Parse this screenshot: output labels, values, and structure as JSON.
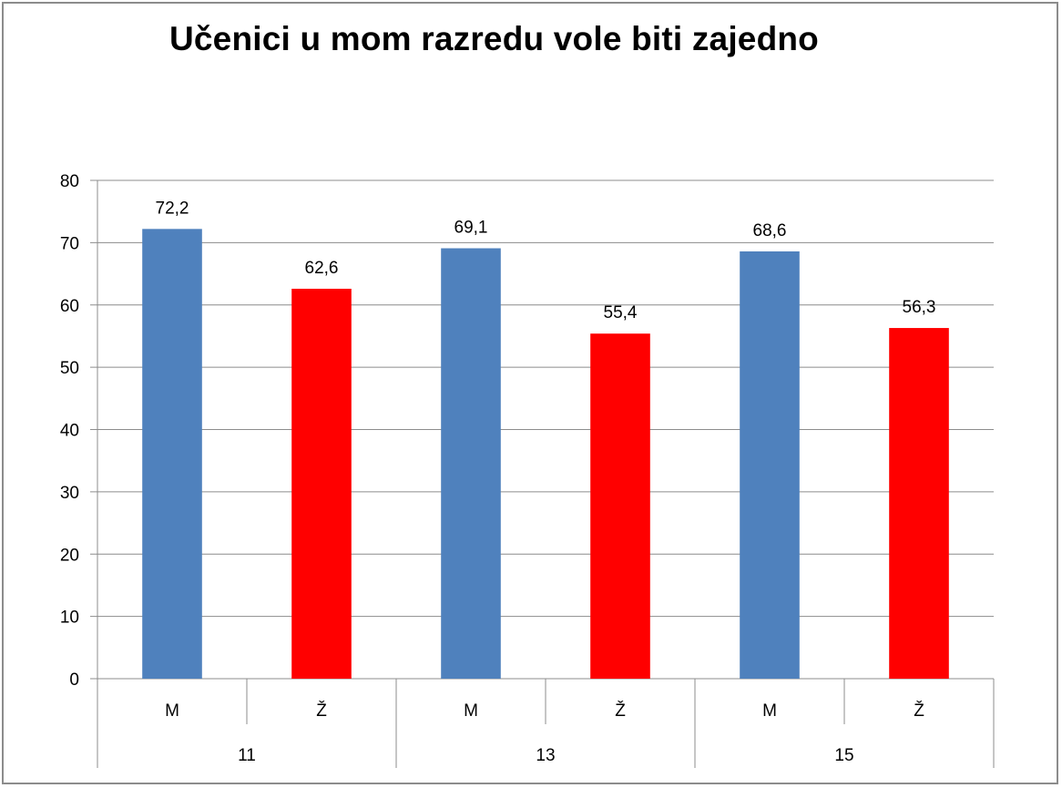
{
  "chart_data": {
    "type": "bar",
    "title": "Učenici u mom razredu vole biti zajedno",
    "groups": [
      {
        "label": "11",
        "bars": [
          {
            "category": "M",
            "value": 72.2,
            "display": "72,2",
            "color": "#4f81bd"
          },
          {
            "category": "Ž",
            "value": 62.6,
            "display": "62,6",
            "color": "#ff0000"
          }
        ]
      },
      {
        "label": "13",
        "bars": [
          {
            "category": "M",
            "value": 69.1,
            "display": "69,1",
            "color": "#4f81bd"
          },
          {
            "category": "Ž",
            "value": 55.4,
            "display": "55,4",
            "color": "#ff0000"
          }
        ]
      },
      {
        "label": "15",
        "bars": [
          {
            "category": "M",
            "value": 68.6,
            "display": "68,6",
            "color": "#4f81bd"
          },
          {
            "category": "Ž",
            "value": 56.3,
            "display": "56,3",
            "color": "#ff0000"
          }
        ]
      }
    ],
    "ylim": [
      0,
      80
    ],
    "yticks": [
      "0",
      "10",
      "20",
      "30",
      "40",
      "50",
      "60",
      "70",
      "80"
    ],
    "grid": true,
    "legend": "none",
    "xlabel": "",
    "ylabel": ""
  }
}
